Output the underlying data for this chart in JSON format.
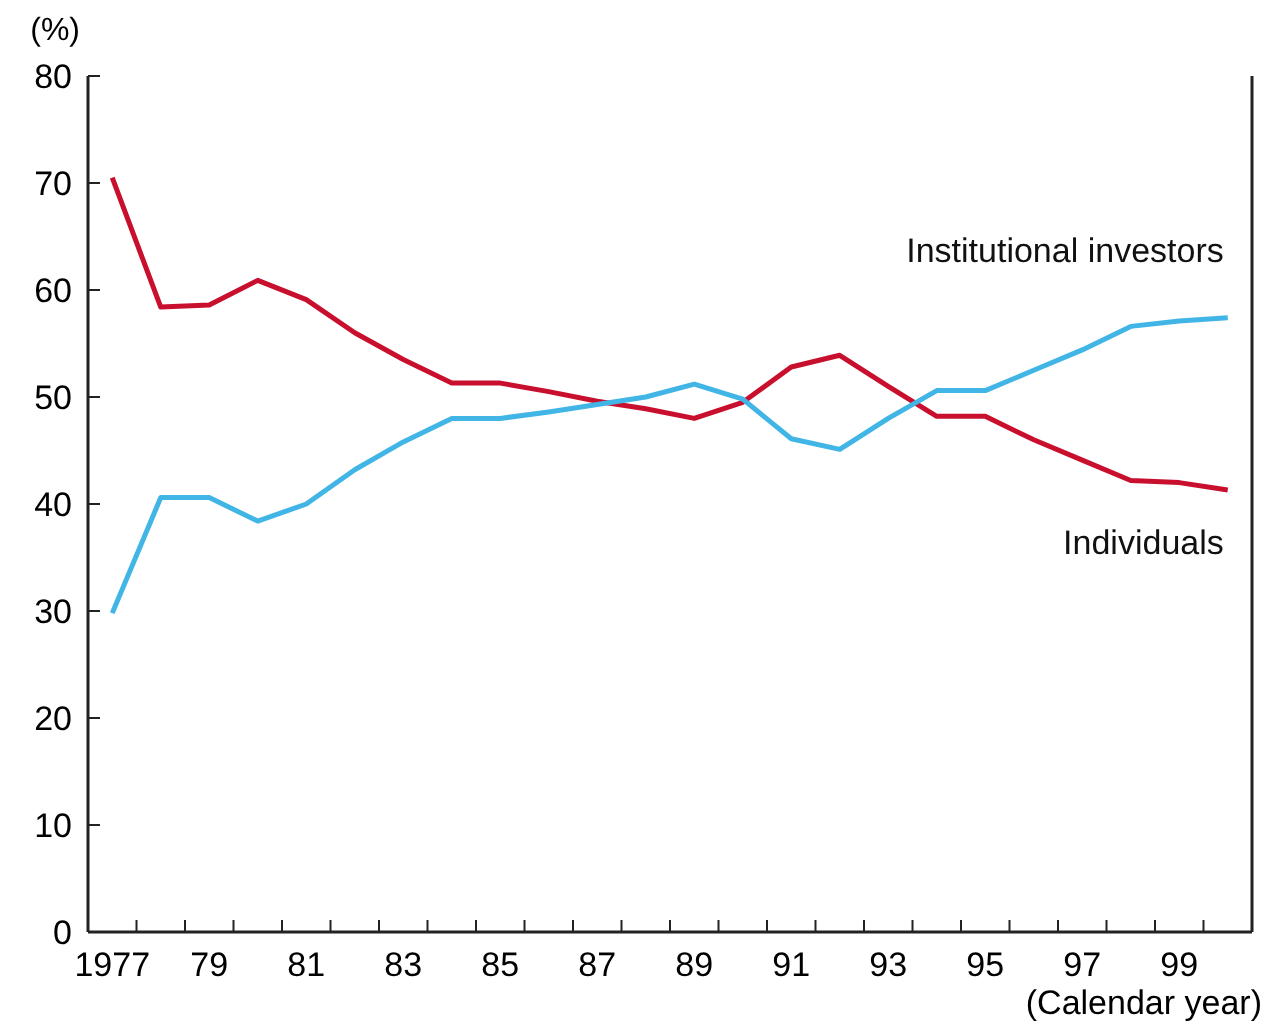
{
  "chart_data": {
    "type": "line",
    "xlabel": "(Calendar year)",
    "ylabel": "(%)",
    "x": [
      1977,
      1978,
      1979,
      1980,
      1981,
      1982,
      1983,
      1984,
      1985,
      1986,
      1987,
      1988,
      1989,
      1990,
      1991,
      1992,
      1993,
      1994,
      1995,
      1996,
      1997,
      1998,
      1999,
      2000
    ],
    "series": [
      {
        "name": "Individuals",
        "color": "#c8102e",
        "values": [
          70.5,
          58.4,
          58.6,
          60.9,
          59.1,
          56.0,
          53.5,
          51.3,
          51.3,
          50.5,
          49.6,
          48.9,
          48.0,
          49.5,
          52.8,
          53.9,
          51.0,
          48.2,
          48.2,
          46.0,
          44.1,
          42.2,
          42.0,
          41.3
        ]
      },
      {
        "name": "Institutional investors",
        "color": "#41b6e6",
        "values": [
          29.8,
          40.6,
          40.6,
          38.4,
          40.0,
          43.2,
          45.8,
          48.0,
          48.0,
          48.6,
          49.3,
          50.0,
          51.2,
          49.8,
          46.1,
          45.1,
          48.0,
          50.6,
          50.6,
          52.5,
          54.4,
          56.6,
          57.1,
          57.4
        ]
      }
    ],
    "xlim": [
      1976.5,
      2000.5
    ],
    "xticks": [
      {
        "value": 1977,
        "label": "1977"
      },
      {
        "value": 1979,
        "label": "79"
      },
      {
        "value": 1981,
        "label": "81"
      },
      {
        "value": 1983,
        "label": "83"
      },
      {
        "value": 1985,
        "label": "85"
      },
      {
        "value": 1987,
        "label": "87"
      },
      {
        "value": 1989,
        "label": "89"
      },
      {
        "value": 1991,
        "label": "91"
      },
      {
        "value": 1993,
        "label": "93"
      },
      {
        "value": 1995,
        "label": "95"
      },
      {
        "value": 1997,
        "label": "97"
      },
      {
        "value": 1999,
        "label": "99"
      }
    ],
    "ylim": [
      0,
      80
    ],
    "yticks": [
      0,
      10,
      20,
      30,
      40,
      50,
      60,
      70,
      80
    ],
    "grid": false,
    "legend": false,
    "marker": "none",
    "line_style": "solid"
  }
}
